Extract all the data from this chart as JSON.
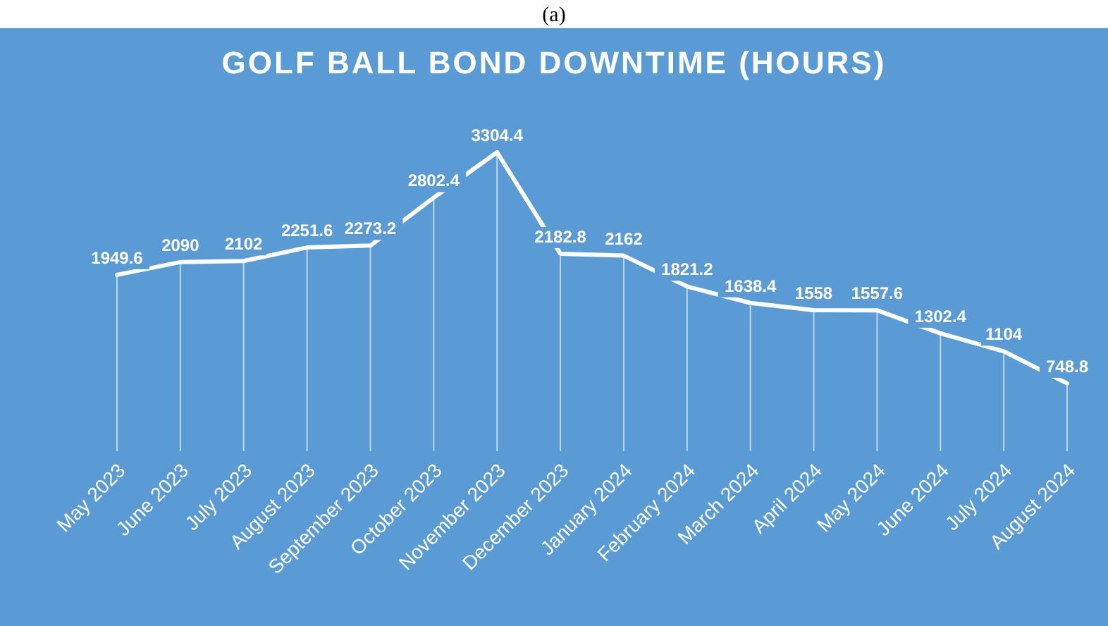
{
  "chart_data": {
    "type": "line",
    "title": "GOLF BALL BOND DOWNTIME (HOURS)",
    "annotations": [
      "(a)"
    ],
    "categories": [
      "May 2023",
      "June 2023",
      "July 2023",
      "August 2023",
      "September 2023",
      "October 2023",
      "November 2023",
      "December 2023",
      "January 2024",
      "February 2024",
      "March 2024",
      "April 2024",
      "May 2024",
      "June 2024",
      "July 2024",
      "August 2024"
    ],
    "series": [
      {
        "color": "#ffffff",
        "values": [
          1949.6,
          2090,
          2102,
          2251.6,
          2273.2,
          2802.4,
          3304.4,
          2182.8,
          2162,
          1821.2,
          1638.4,
          1558,
          1557.6,
          1302.4,
          1104,
          748.8
        ]
      }
    ],
    "data_labels": true,
    "grid": "x",
    "marker": "none",
    "line_style": "solid"
  }
}
